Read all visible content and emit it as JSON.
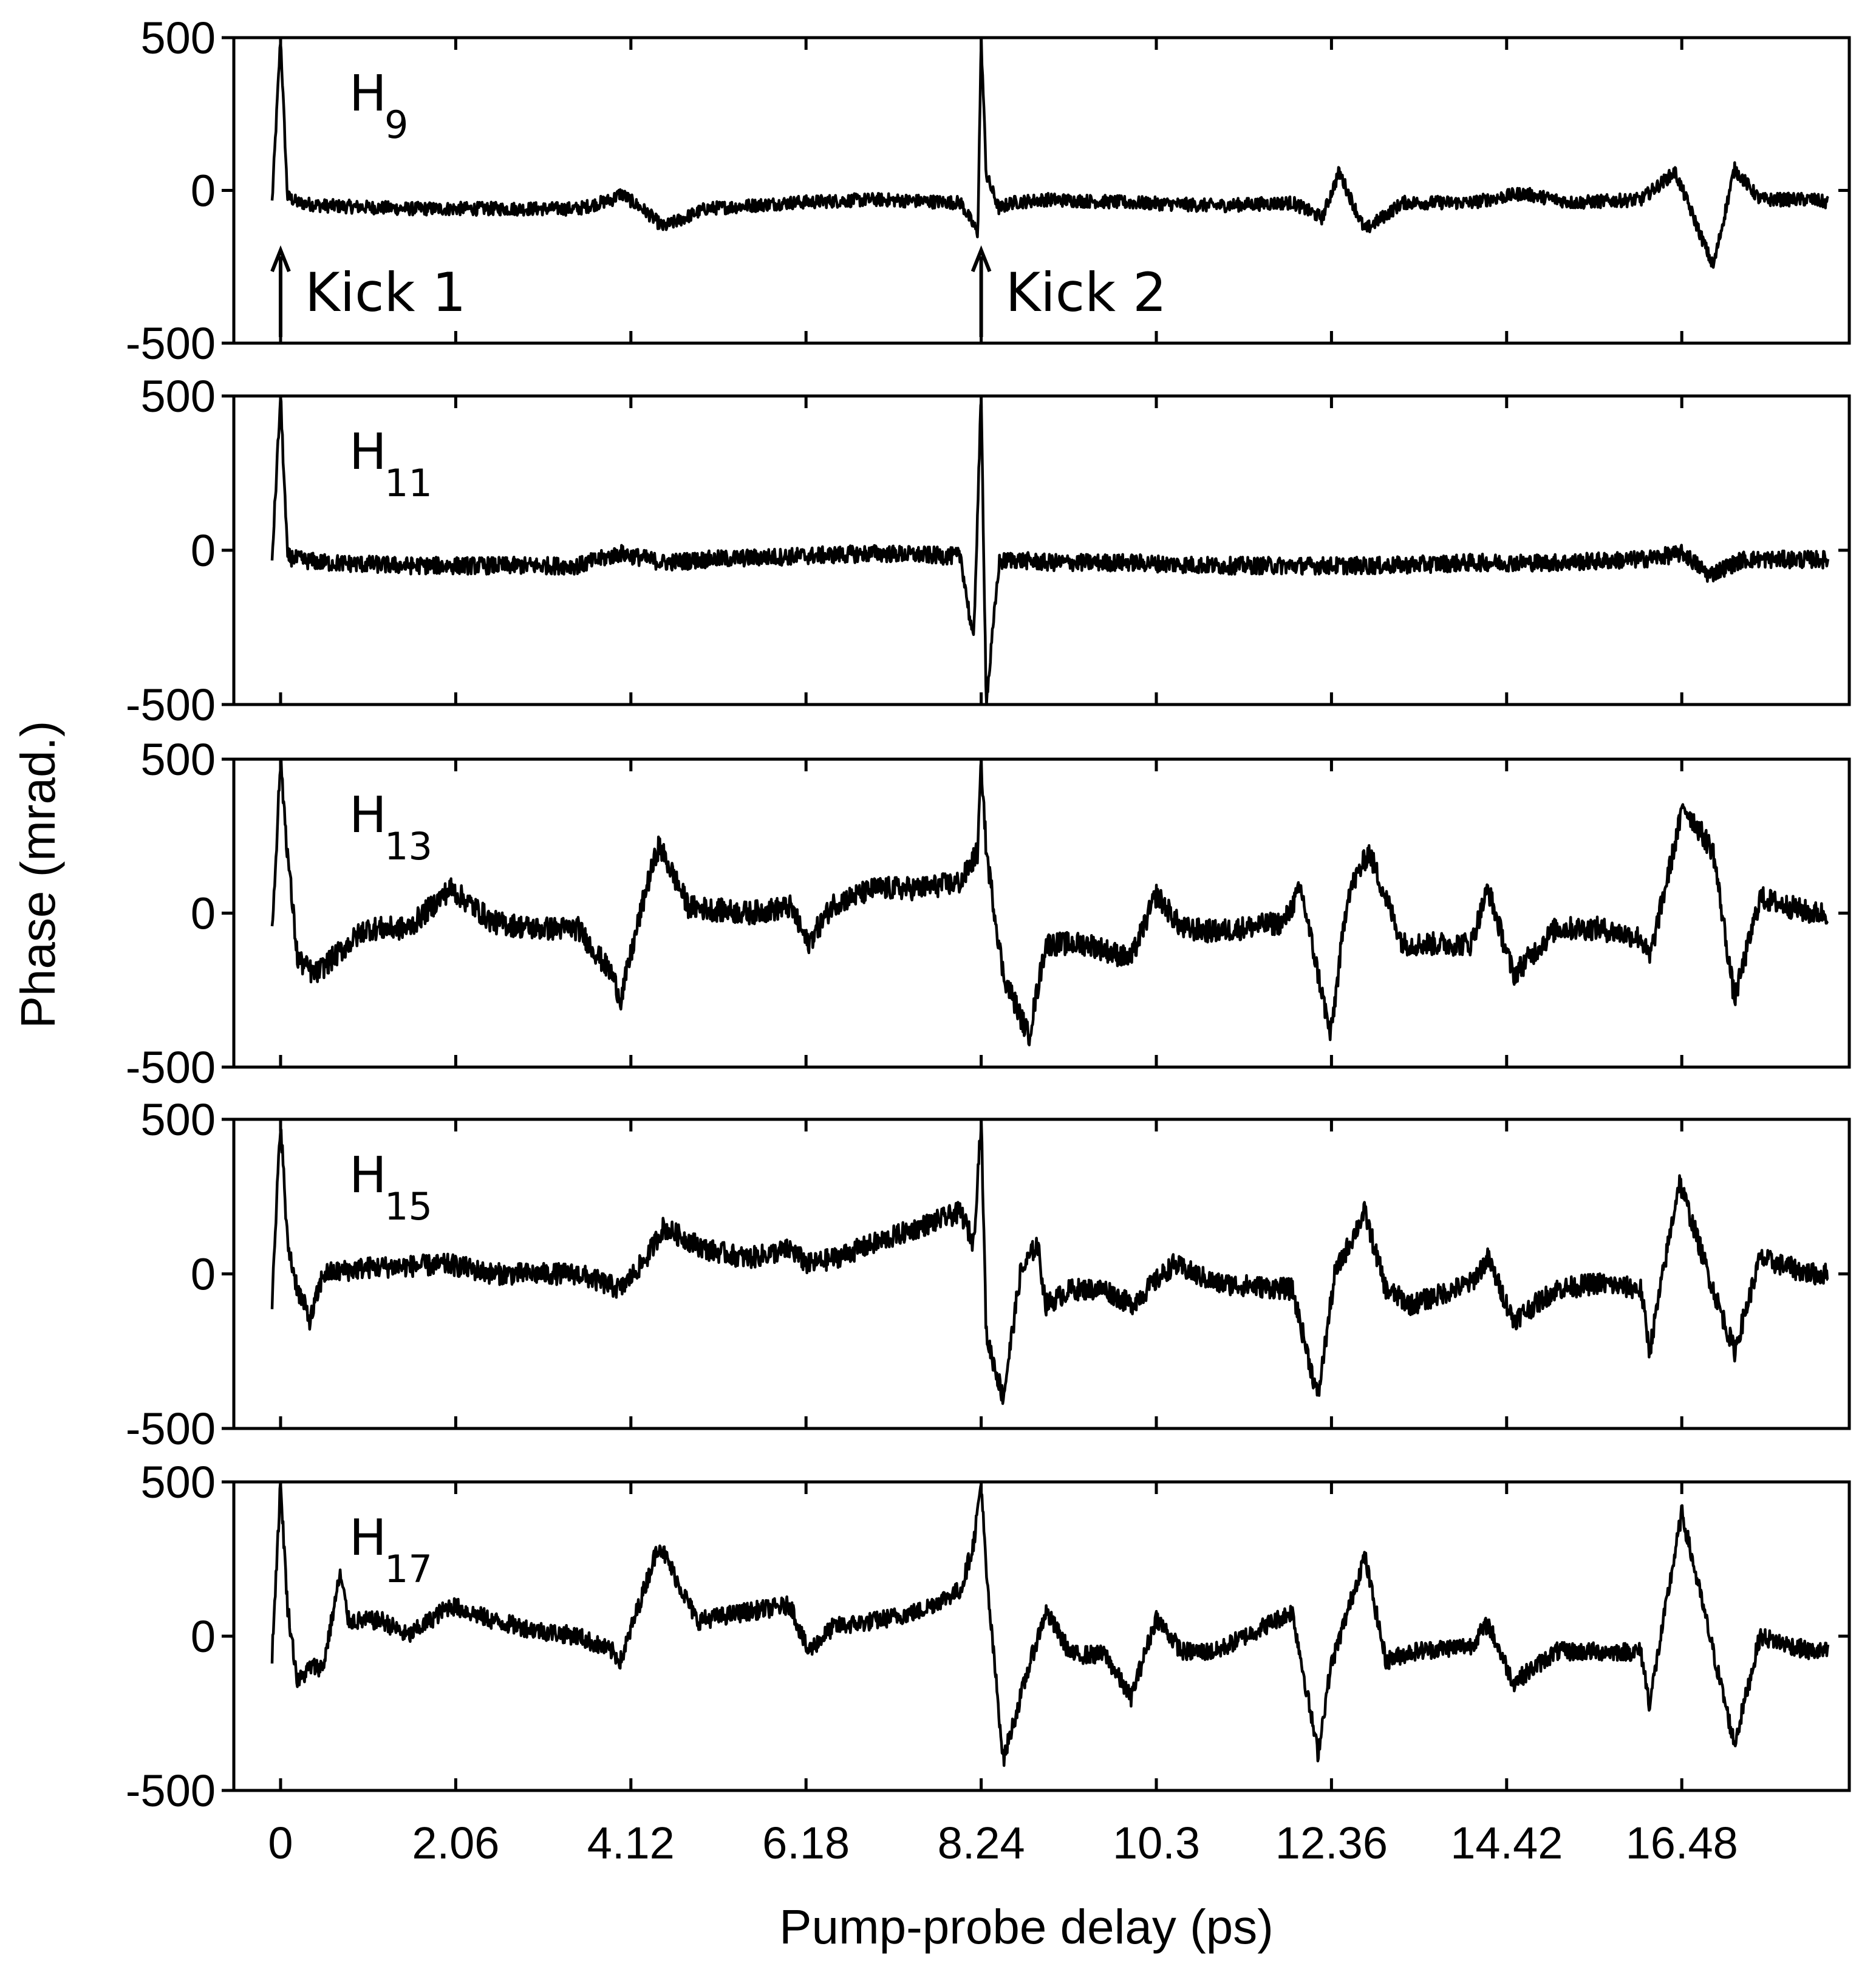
{
  "chart_data": {
    "type": "line",
    "xlabel": "Pump-probe delay (ps)",
    "ylabel": "Phase (mrad.)",
    "x_ticks": [
      0,
      2.06,
      4.12,
      6.18,
      8.24,
      10.3,
      12.36,
      14.42,
      16.48
    ],
    "x_tick_labels": [
      "0",
      "2.06",
      "4.12",
      "6.18",
      "8.24",
      "10.3",
      "12.36",
      "14.42",
      "16.48"
    ],
    "xlim": [
      -0.55,
      18.45
    ],
    "ylim": [
      -500,
      500
    ],
    "y_ticks": [
      -500,
      0,
      500
    ],
    "y_tick_labels": [
      "-500",
      "0",
      "500"
    ],
    "annotations": [
      {
        "text": "Kick 1",
        "x": 0,
        "panel": 0
      },
      {
        "text": "Kick 2",
        "x": 8.24,
        "panel": 0
      }
    ],
    "series": [
      {
        "label_main": "H",
        "label_sub": "9",
        "noise": 22,
        "x": [
          -0.1,
          0,
          0.08,
          0.2,
          0.5,
          1.5,
          2.5,
          3.5,
          3.9,
          4.0,
          4.3,
          4.5,
          5.0,
          6.0,
          7.0,
          8.0,
          8.2,
          8.24,
          8.3,
          8.45,
          8.6,
          9.0,
          10.0,
          11.0,
          11.9,
          12.25,
          12.45,
          12.75,
          13.2,
          14.0,
          14.6,
          15.2,
          16.0,
          16.4,
          16.55,
          16.85,
          17.1,
          17.4,
          18.0,
          18.2
        ],
        "y": [
          -40,
          500,
          -20,
          -40,
          -50,
          -60,
          -60,
          -60,
          -30,
          -10,
          -70,
          -120,
          -60,
          -40,
          -30,
          -40,
          -140,
          500,
          50,
          -60,
          -40,
          -30,
          -40,
          -50,
          -40,
          -90,
          60,
          -130,
          -40,
          -40,
          -10,
          -40,
          -30,
          60,
          -40,
          -250,
          70,
          -30,
          -30,
          -40
        ]
      },
      {
        "label_main": "H",
        "label_sub": "11",
        "noise": 28,
        "x": [
          -0.1,
          0,
          0.08,
          0.2,
          0.5,
          1.5,
          2.5,
          3.5,
          4.0,
          4.5,
          5.0,
          6.0,
          7.0,
          8.0,
          8.15,
          8.24,
          8.3,
          8.45,
          8.6,
          9.0,
          10.0,
          11.0,
          12.0,
          13.0,
          14.0,
          15.0,
          16.0,
          16.5,
          16.8,
          17.2,
          18.0,
          18.2
        ],
        "y": [
          -30,
          500,
          -20,
          -30,
          -40,
          -50,
          -50,
          -50,
          -10,
          -40,
          -30,
          -20,
          -10,
          -20,
          -300,
          500,
          -500,
          -40,
          -30,
          -40,
          -40,
          -50,
          -50,
          -50,
          -40,
          -40,
          -30,
          -10,
          -80,
          -30,
          -30,
          -30
        ]
      },
      {
        "label_main": "H",
        "label_sub": "13",
        "noise": 38,
        "x": [
          -0.1,
          0.0,
          0.08,
          0.2,
          0.4,
          0.6,
          1.0,
          1.5,
          2.0,
          2.5,
          3.0,
          3.5,
          3.9,
          4.0,
          4.3,
          4.45,
          4.8,
          5.5,
          6.0,
          6.2,
          6.5,
          7.0,
          7.5,
          8.0,
          8.2,
          8.24,
          8.3,
          8.5,
          8.8,
          9.0,
          9.5,
          10.0,
          10.3,
          10.6,
          11.0,
          11.8,
          12.0,
          12.35,
          12.55,
          12.8,
          13.2,
          14.0,
          14.2,
          14.5,
          15.0,
          15.5,
          16.0,
          16.1,
          16.5,
          16.85,
          17.1,
          17.4,
          18.0,
          18.2
        ],
        "y": [
          -60,
          500,
          200,
          -150,
          -200,
          -150,
          -50,
          -50,
          80,
          -30,
          -50,
          -50,
          -200,
          -280,
          80,
          220,
          20,
          0,
          20,
          -100,
          30,
          80,
          80,
          100,
          200,
          500,
          200,
          -200,
          -400,
          -100,
          -100,
          -150,
          60,
          -50,
          -60,
          -30,
          80,
          -400,
          60,
          200,
          -100,
          -100,
          80,
          -200,
          -50,
          -50,
          -80,
          -150,
          350,
          200,
          -280,
          50,
          0,
          0
        ]
      },
      {
        "label_main": "H",
        "label_sub": "15",
        "noise": 35,
        "x": [
          -0.1,
          0,
          0.08,
          0.2,
          0.35,
          0.5,
          1.0,
          2.0,
          2.5,
          3.0,
          3.5,
          4.0,
          4.3,
          4.5,
          5.0,
          5.5,
          6.0,
          6.2,
          6.5,
          7.0,
          7.5,
          8.0,
          8.15,
          8.24,
          8.3,
          8.5,
          8.7,
          8.9,
          9.0,
          9.3,
          9.7,
          10.0,
          10.5,
          11.0,
          11.9,
          12.2,
          12.4,
          12.75,
          13.0,
          13.3,
          14.0,
          14.2,
          14.5,
          15.0,
          15.5,
          16.0,
          16.1,
          16.45,
          16.85,
          17.1,
          17.4,
          18.0,
          18.2
        ],
        "y": [
          -100,
          500,
          100,
          -50,
          -150,
          0,
          20,
          30,
          0,
          0,
          0,
          -50,
          50,
          150,
          80,
          50,
          80,
          30,
          50,
          100,
          150,
          200,
          100,
          500,
          -200,
          -400,
          0,
          100,
          -100,
          -50,
          -50,
          -100,
          30,
          -30,
          -50,
          -400,
          0,
          200,
          -50,
          -100,
          -30,
          50,
          -150,
          -50,
          -30,
          -50,
          -250,
          300,
          -50,
          -250,
          50,
          0,
          0
        ]
      },
      {
        "label_main": "H",
        "label_sub": "17",
        "noise": 30,
        "x": [
          -0.1,
          0,
          0.08,
          0.2,
          0.35,
          0.5,
          0.7,
          0.8,
          1.2,
          1.5,
          2.0,
          2.5,
          3.0,
          3.5,
          3.9,
          4.0,
          4.45,
          4.9,
          5.5,
          6.0,
          6.2,
          6.5,
          7.0,
          7.5,
          8.0,
          8.15,
          8.24,
          8.3,
          8.5,
          8.8,
          9.0,
          9.3,
          9.7,
          10.0,
          10.3,
          10.6,
          11.0,
          11.9,
          12.2,
          12.35,
          12.75,
          13.0,
          13.3,
          14.0,
          14.2,
          14.5,
          15.0,
          15.5,
          16.0,
          16.1,
          16.48,
          16.85,
          17.1,
          17.4,
          18.0,
          18.2
        ],
        "y": [
          -60,
          500,
          100,
          -150,
          -100,
          -100,
          200,
          50,
          50,
          0,
          100,
          50,
          20,
          0,
          -50,
          -80,
          300,
          50,
          80,
          100,
          -50,
          30,
          50,
          80,
          150,
          300,
          500,
          200,
          -400,
          -100,
          80,
          -60,
          -60,
          -200,
          60,
          -50,
          -50,
          80,
          -380,
          -100,
          260,
          -80,
          -50,
          -30,
          40,
          -150,
          -50,
          -50,
          -50,
          -220,
          400,
          -50,
          -350,
          0,
          -50,
          -50
        ]
      }
    ]
  }
}
